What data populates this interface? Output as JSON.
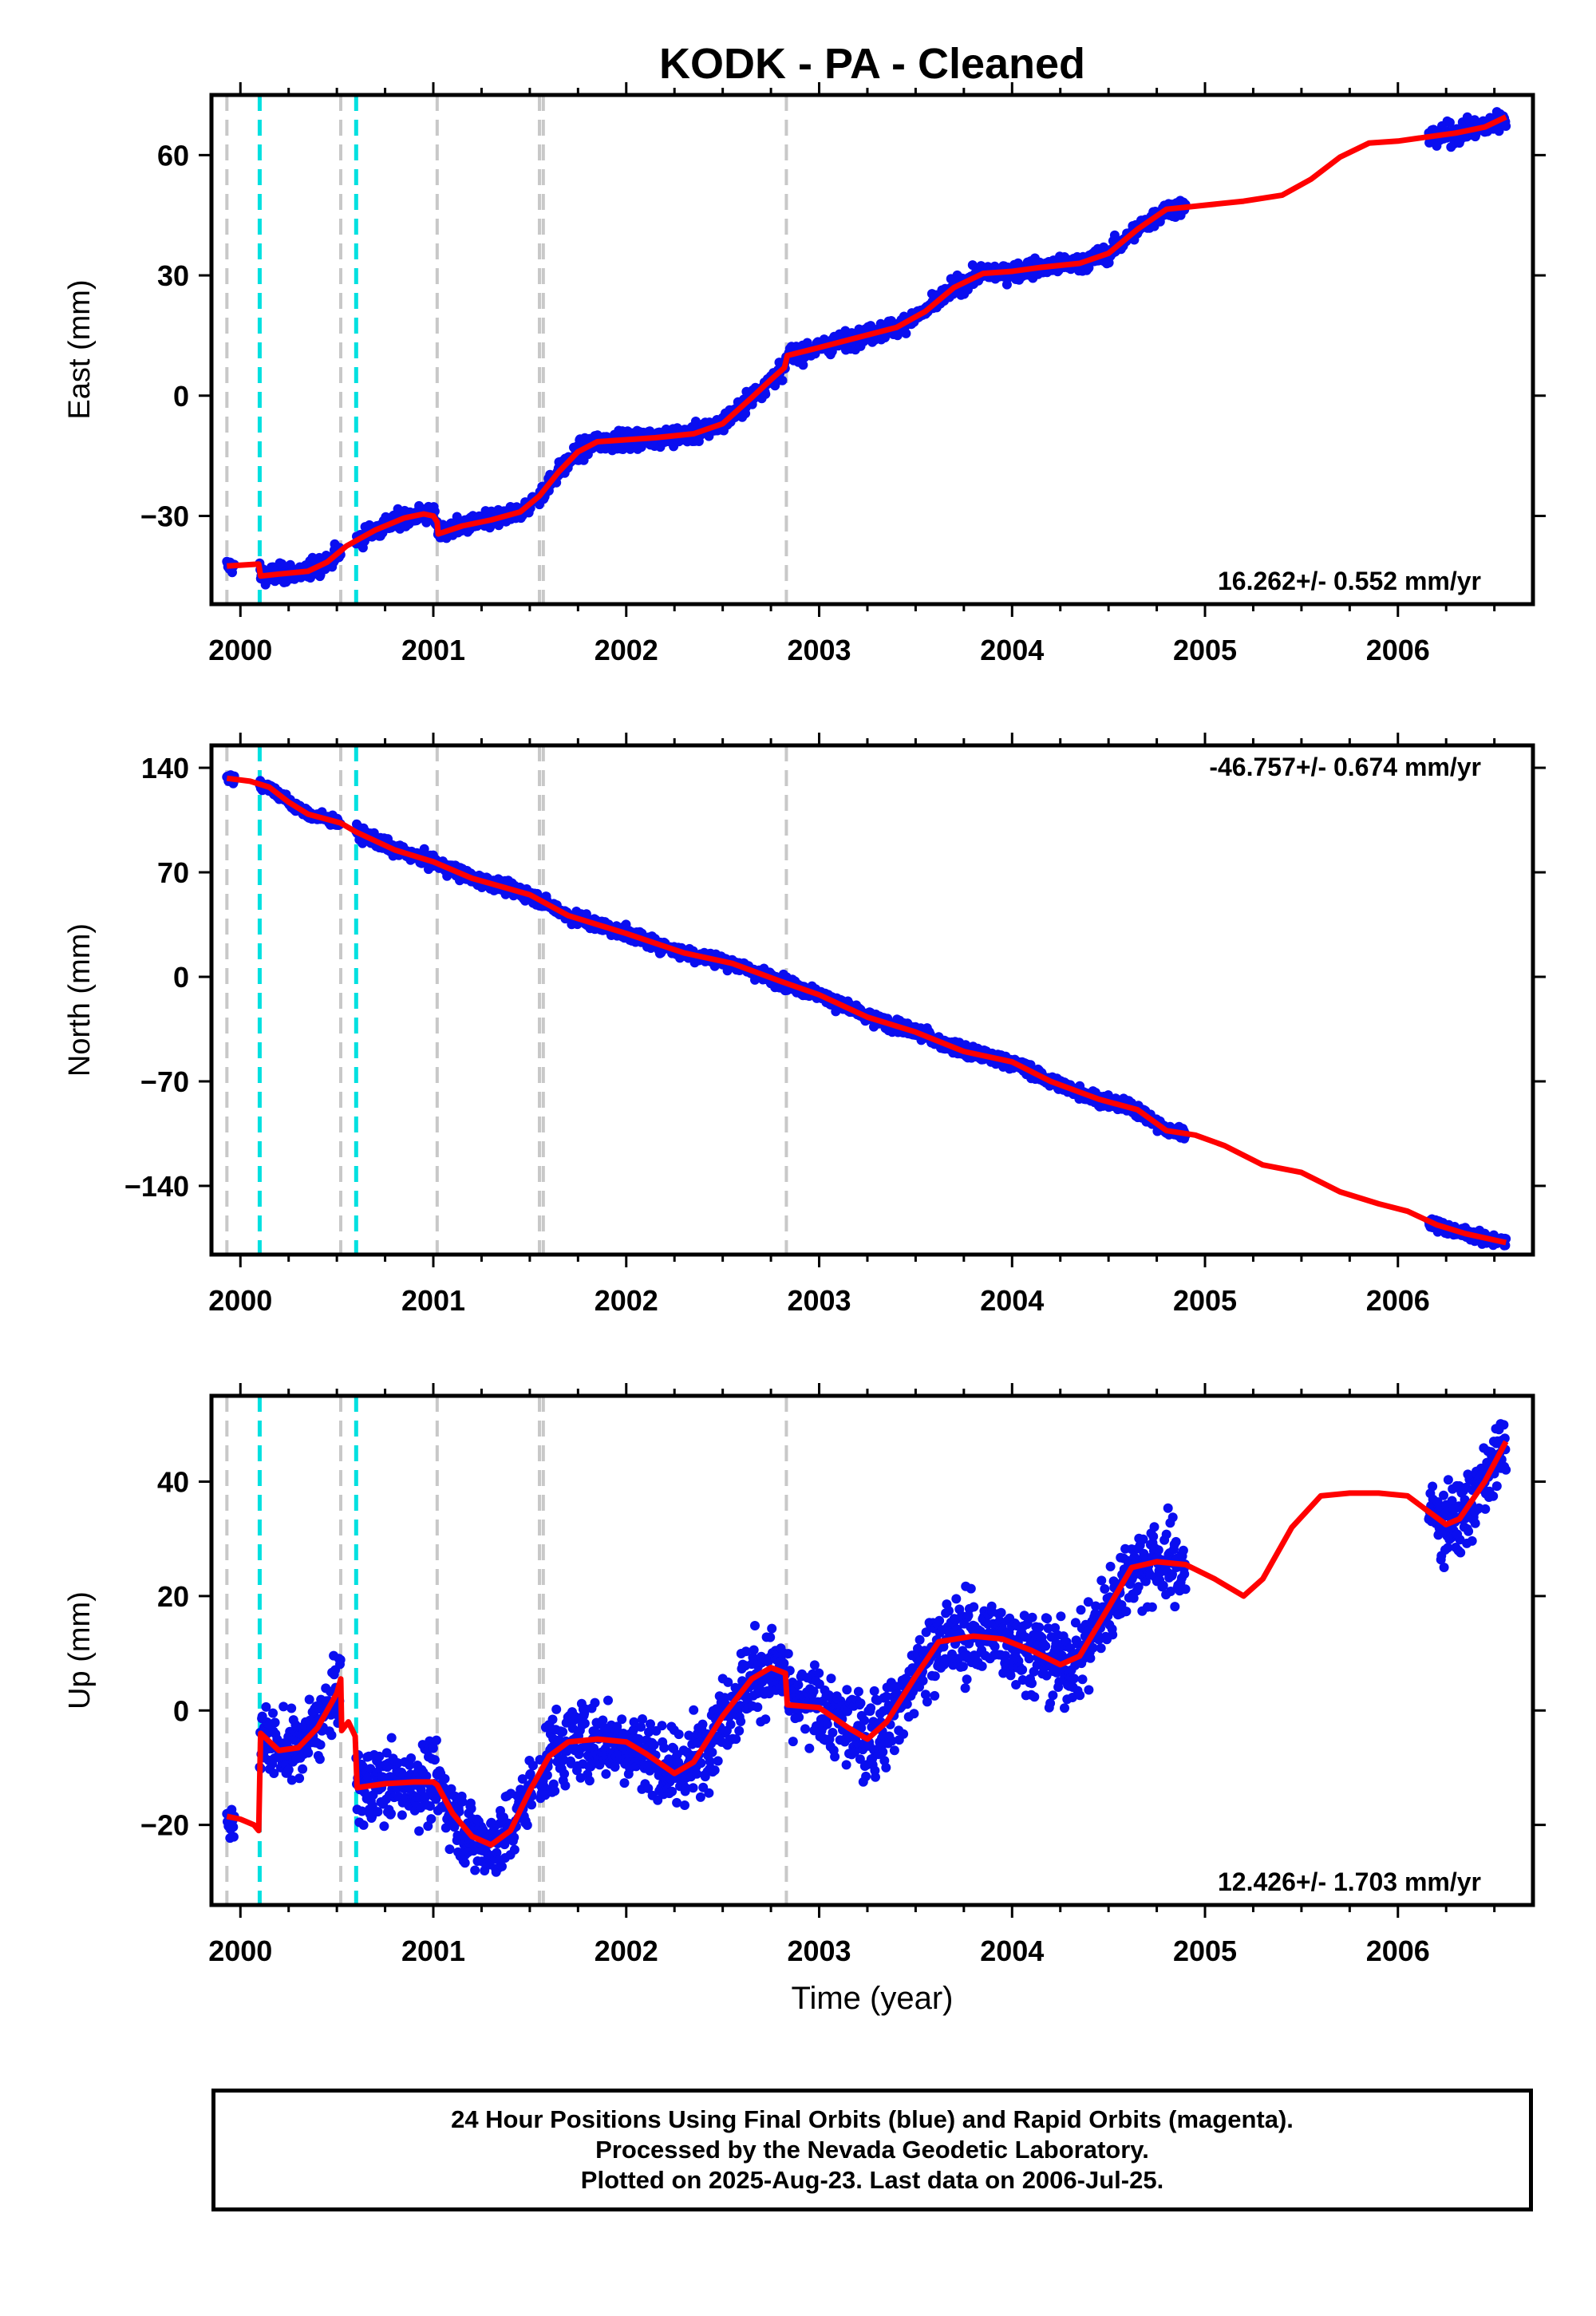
{
  "figure_title": "KODK  - PA - Cleaned",
  "colors": {
    "points": "#0a0ef0",
    "model": "#ff0000",
    "equipment_change": "#c8c8c8",
    "earthquake": "#00e0e0",
    "frame": "#000000"
  },
  "chart_data": [
    {
      "type": "scatter",
      "component": "East",
      "ylabel": "East (mm)",
      "xlim": [
        1999.85,
        2006.7
      ],
      "ylim": [
        -52,
        75
      ],
      "yticks": [
        -30,
        0,
        30,
        60
      ],
      "ytick_labels": [
        "−30",
        "0",
        "30",
        "60"
      ],
      "xticks": [
        2000,
        2001,
        2002,
        2003,
        2004,
        2005,
        2006
      ],
      "xtick_labels": [
        "2000",
        "2001",
        "2002",
        "2003",
        "2004",
        "2005",
        "2006"
      ],
      "rate_label": "16.262+/- 0.552 mm/yr",
      "rate_position": "bottom-right",
      "vlines_gray": [
        1999.93,
        2000.52,
        2001.02,
        2001.55,
        2001.57,
        2002.83
      ],
      "vlines_cyan": [
        2000.1,
        2000.6
      ],
      "model": [
        [
          1999.93,
          -42.5
        ],
        [
          2000.03,
          -42.2
        ],
        [
          2000.095,
          -42.0
        ],
        [
          2000.105,
          -45.0
        ],
        [
          2000.2,
          -44.5
        ],
        [
          2000.35,
          -43.8
        ],
        [
          2000.45,
          -41.5
        ],
        [
          2000.55,
          -37.5
        ],
        [
          2000.7,
          -33.5
        ],
        [
          2000.85,
          -30.5
        ],
        [
          2000.95,
          -29.5
        ],
        [
          2001.0,
          -30.0
        ],
        [
          2001.02,
          -31.5
        ],
        [
          2001.025,
          -34.5
        ],
        [
          2001.15,
          -32.5
        ],
        [
          2001.3,
          -31.0
        ],
        [
          2001.45,
          -29.0
        ],
        [
          2001.55,
          -25.0
        ],
        [
          2001.65,
          -19.0
        ],
        [
          2001.75,
          -14.0
        ],
        [
          2001.85,
          -11.5
        ],
        [
          2002.0,
          -11.0
        ],
        [
          2002.15,
          -10.5
        ],
        [
          2002.35,
          -9.5
        ],
        [
          2002.5,
          -7.0
        ],
        [
          2002.65,
          -0.5
        ],
        [
          2002.75,
          4.0
        ],
        [
          2002.82,
          7.0
        ],
        [
          2002.835,
          10.0
        ],
        [
          2003.0,
          12.0
        ],
        [
          2003.2,
          14.5
        ],
        [
          2003.4,
          17.0
        ],
        [
          2003.55,
          21.0
        ],
        [
          2003.7,
          27.0
        ],
        [
          2003.85,
          30.5
        ],
        [
          2004.0,
          31.0
        ],
        [
          2004.15,
          32.0
        ],
        [
          2004.35,
          33.0
        ],
        [
          2004.5,
          35.5
        ],
        [
          2004.65,
          41.5
        ],
        [
          2004.8,
          46.5
        ],
        [
          2005.0,
          47.5
        ],
        [
          2005.2,
          48.5
        ],
        [
          2005.4,
          50.0
        ],
        [
          2005.55,
          54.0
        ],
        [
          2005.7,
          59.5
        ],
        [
          2005.85,
          63.0
        ],
        [
          2006.0,
          63.5
        ],
        [
          2006.15,
          64.5
        ],
        [
          2006.3,
          65.5
        ],
        [
          2006.45,
          67.0
        ],
        [
          2006.56,
          69.5
        ]
      ],
      "data_segments": [
        {
          "x0": 1999.93,
          "x1": 1999.97,
          "sd": 1.2,
          "offset": 0
        },
        {
          "x0": 2000.1,
          "x1": 2000.45,
          "sd": 1.6,
          "offset": 0
        },
        {
          "x0": 2000.47,
          "x1": 2000.52,
          "sd": 1.5,
          "offset": 0
        },
        {
          "x0": 2000.6,
          "x1": 2001.52,
          "sd": 1.5,
          "offset": 0
        },
        {
          "x0": 2001.55,
          "x1": 2002.83,
          "sd": 1.6,
          "offset": 0
        },
        {
          "x0": 2002.84,
          "x1": 2004.9,
          "sd": 1.5,
          "offset": 0
        },
        {
          "x0": 2006.16,
          "x1": 2006.56,
          "sd": 1.8,
          "offset": 0
        }
      ]
    },
    {
      "type": "scatter",
      "component": "North",
      "ylabel": "North (mm)",
      "xlim": [
        1999.85,
        2006.7
      ],
      "ylim": [
        -186,
        155
      ],
      "yticks": [
        -140,
        -70,
        0,
        70,
        140
      ],
      "ytick_labels": [
        "−140",
        "−70",
        "0",
        "70",
        "140"
      ],
      "xticks": [
        2000,
        2001,
        2002,
        2003,
        2004,
        2005,
        2006
      ],
      "xtick_labels": [
        "2000",
        "2001",
        "2002",
        "2003",
        "2004",
        "2005",
        "2006"
      ],
      "rate_label": "-46.757+/- 0.674 mm/yr",
      "rate_position": "top-right",
      "vlines_gray": [
        1999.93,
        2000.52,
        2001.02,
        2001.55,
        2001.57,
        2002.83
      ],
      "vlines_cyan": [
        2000.1,
        2000.6
      ],
      "model": [
        [
          1999.93,
          133
        ],
        [
          2000.05,
          131
        ],
        [
          2000.15,
          127
        ],
        [
          2000.25,
          117
        ],
        [
          2000.35,
          109
        ],
        [
          2000.52,
          103
        ],
        [
          2000.6,
          97
        ],
        [
          2000.8,
          85
        ],
        [
          2001.0,
          77
        ],
        [
          2001.2,
          66
        ],
        [
          2001.5,
          55
        ],
        [
          2001.7,
          41
        ],
        [
          2002.0,
          29
        ],
        [
          2002.3,
          16
        ],
        [
          2002.55,
          9
        ],
        [
          2002.8,
          -3
        ],
        [
          2003.0,
          -12
        ],
        [
          2003.25,
          -27
        ],
        [
          2003.5,
          -37
        ],
        [
          2003.75,
          -50
        ],
        [
          2004.0,
          -57
        ],
        [
          2004.2,
          -70
        ],
        [
          2004.45,
          -82
        ],
        [
          2004.65,
          -89
        ],
        [
          2004.8,
          -103
        ],
        [
          2004.95,
          -106
        ],
        [
          2005.1,
          -113
        ],
        [
          2005.3,
          -126
        ],
        [
          2005.5,
          -131
        ],
        [
          2005.7,
          -144
        ],
        [
          2005.9,
          -152
        ],
        [
          2006.05,
          -157
        ],
        [
          2006.2,
          -166
        ],
        [
          2006.35,
          -172
        ],
        [
          2006.56,
          -178
        ]
      ],
      "data_segments": [
        {
          "x0": 1999.93,
          "x1": 1999.97,
          "sd": 2.5,
          "offset": 0
        },
        {
          "x0": 2000.1,
          "x1": 2000.52,
          "sd": 2.5,
          "offset": 0
        },
        {
          "x0": 2000.6,
          "x1": 2004.9,
          "sd": 3.0,
          "offset": 0
        },
        {
          "x0": 2006.16,
          "x1": 2006.56,
          "sd": 2.5,
          "offset": 0
        }
      ]
    },
    {
      "type": "scatter",
      "component": "Up",
      "ylabel": "Up (mm)",
      "xlim": [
        1999.85,
        2006.7
      ],
      "ylim": [
        -34,
        55
      ],
      "yticks": [
        -20,
        0,
        20,
        40
      ],
      "ytick_labels": [
        "−20",
        "0",
        "20",
        "40"
      ],
      "xticks": [
        2000,
        2001,
        2002,
        2003,
        2004,
        2005,
        2006
      ],
      "xtick_labels": [
        "2000",
        "2001",
        "2002",
        "2003",
        "2004",
        "2005",
        "2006"
      ],
      "xlabel": "Time (year)",
      "rate_label": "12.426+/- 1.703 mm/yr",
      "rate_position": "bottom-right",
      "vlines_gray": [
        1999.93,
        2000.52,
        2001.02,
        2001.55,
        2001.57,
        2002.83
      ],
      "vlines_cyan": [
        2000.1,
        2000.6
      ],
      "model": [
        [
          1999.93,
          -18.5
        ],
        [
          2000.0,
          -19.0
        ],
        [
          2000.07,
          -20.0
        ],
        [
          2000.095,
          -21.0
        ],
        [
          2000.105,
          -4.0
        ],
        [
          2000.2,
          -7.0
        ],
        [
          2000.3,
          -6.5
        ],
        [
          2000.4,
          -3.0
        ],
        [
          2000.5,
          3.0
        ],
        [
          2000.52,
          5.5
        ],
        [
          2000.525,
          -3.5
        ],
        [
          2000.56,
          -2.0
        ],
        [
          2000.595,
          -4.5
        ],
        [
          2000.605,
          -13.5
        ],
        [
          2000.75,
          -12.8
        ],
        [
          2000.9,
          -12.5
        ],
        [
          2001.0,
          -12.5
        ],
        [
          2001.02,
          -13.0
        ],
        [
          2001.1,
          -18.0
        ],
        [
          2001.2,
          -22.0
        ],
        [
          2001.3,
          -23.5
        ],
        [
          2001.4,
          -21.0
        ],
        [
          2001.5,
          -14.0
        ],
        [
          2001.6,
          -8.0
        ],
        [
          2001.7,
          -5.5
        ],
        [
          2001.85,
          -5.0
        ],
        [
          2002.0,
          -5.5
        ],
        [
          2002.1,
          -7.5
        ],
        [
          2002.25,
          -11.0
        ],
        [
          2002.35,
          -9.0
        ],
        [
          2002.5,
          -1.0
        ],
        [
          2002.65,
          5.5
        ],
        [
          2002.75,
          7.5
        ],
        [
          2002.825,
          6.5
        ],
        [
          2002.835,
          1.0
        ],
        [
          2003.0,
          0.5
        ],
        [
          2003.15,
          -3.0
        ],
        [
          2003.25,
          -5.0
        ],
        [
          2003.35,
          -2.0
        ],
        [
          2003.5,
          6.0
        ],
        [
          2003.62,
          12.0
        ],
        [
          2003.8,
          13.0
        ],
        [
          2003.95,
          12.5
        ],
        [
          2004.1,
          10.5
        ],
        [
          2004.25,
          8.0
        ],
        [
          2004.35,
          9.5
        ],
        [
          2004.5,
          18.0
        ],
        [
          2004.62,
          25.0
        ],
        [
          2004.75,
          26.0
        ],
        [
          2004.9,
          25.5
        ],
        [
          2005.05,
          23.0
        ],
        [
          2005.2,
          20.0
        ],
        [
          2005.3,
          23.0
        ],
        [
          2005.45,
          32.0
        ],
        [
          2005.6,
          37.5
        ],
        [
          2005.75,
          38.0
        ],
        [
          2005.9,
          38.0
        ],
        [
          2006.05,
          37.5
        ],
        [
          2006.15,
          35.0
        ],
        [
          2006.25,
          32.5
        ],
        [
          2006.32,
          33.5
        ],
        [
          2006.45,
          40.0
        ],
        [
          2006.56,
          47.0
        ]
      ],
      "data_segments": [
        {
          "x0": 1999.93,
          "x1": 1999.97,
          "sd": 2.5,
          "offset": 0
        },
        {
          "x0": 2000.1,
          "x1": 2000.52,
          "sd": 4.0,
          "offset": 0
        },
        {
          "x0": 2000.6,
          "x1": 2001.52,
          "sd": 4.5,
          "offset": 0
        },
        {
          "x0": 2001.55,
          "x1": 2002.83,
          "sd": 5.0,
          "offset": 0
        },
        {
          "x0": 2002.84,
          "x1": 2004.9,
          "sd": 5.0,
          "offset": 0
        },
        {
          "x0": 2006.16,
          "x1": 2006.56,
          "sd": 4.5,
          "offset": 0
        }
      ]
    }
  ],
  "caption": {
    "line1": "24 Hour Positions Using Final Orbits (blue) and Rapid Orbits (magenta).",
    "line2": "Processed by the Nevada Geodetic Laboratory.",
    "line3": "Plotted on 2025-Aug-23. Last data on 2006-Jul-25."
  }
}
